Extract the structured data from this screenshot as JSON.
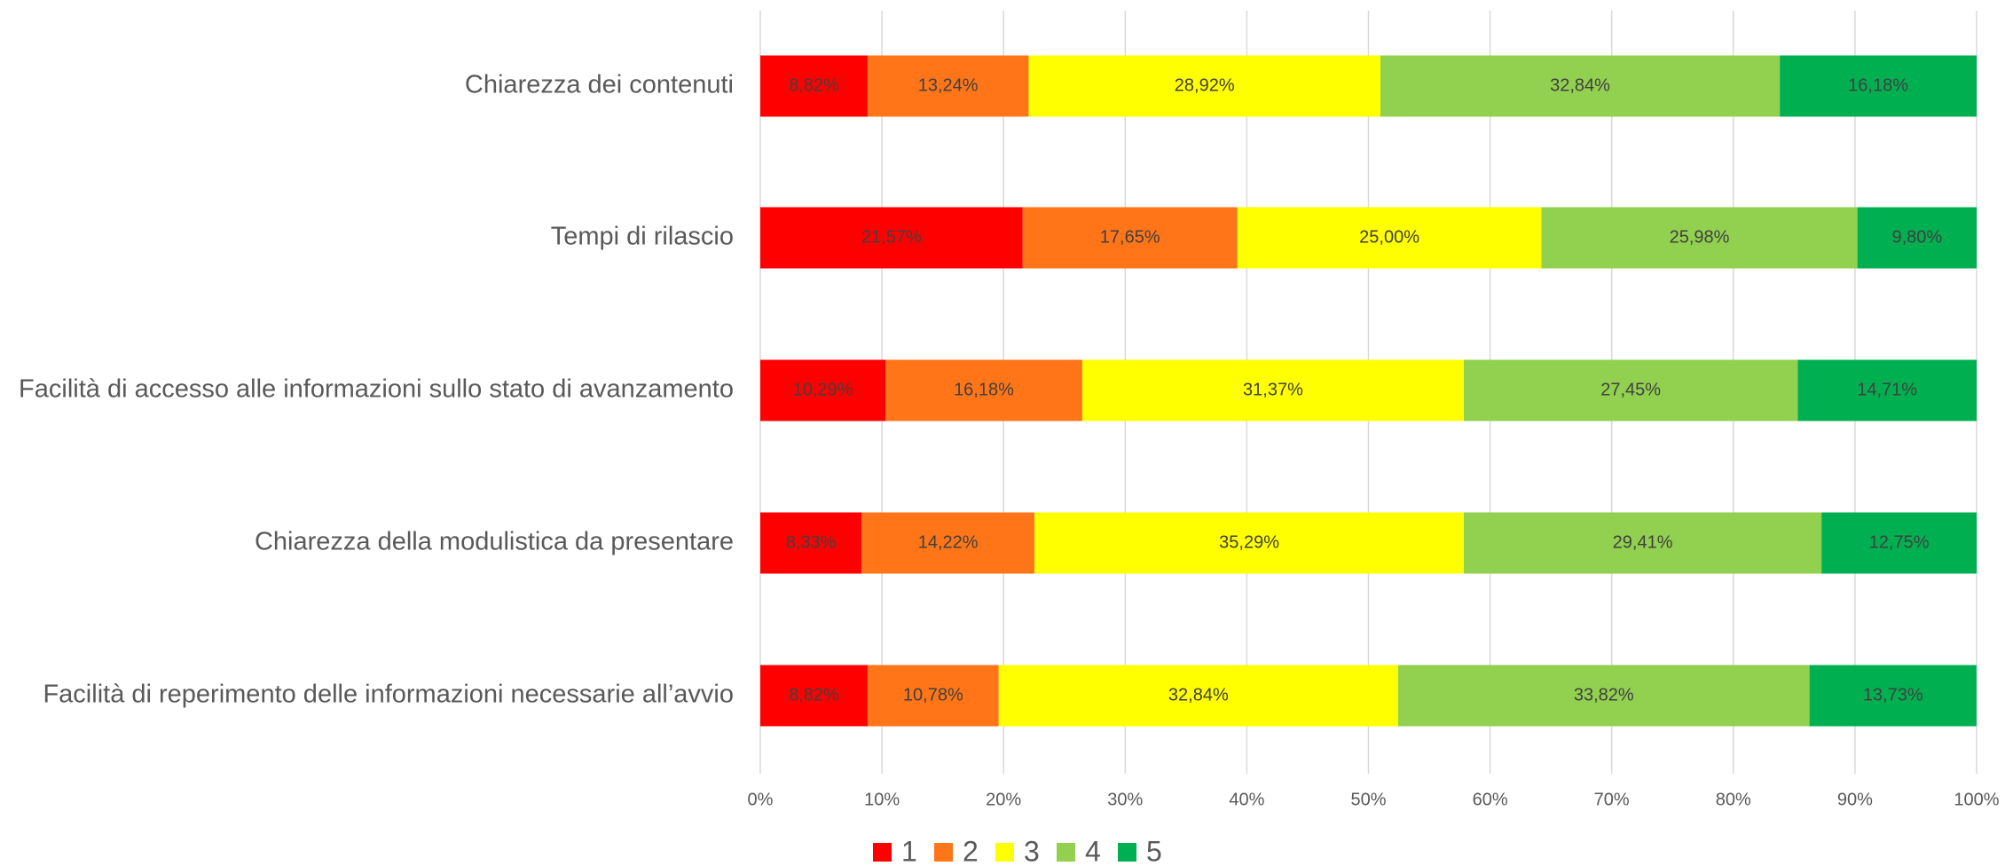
{
  "chart_data": {
    "type": "stacked-bar-horizontal",
    "categories": [
      "Chiarezza dei contenuti",
      "Tempi di rilascio",
      "Facilità di accesso alle informazioni sullo stato di avanzamento",
      "Chiarezza della modulistica da presentare",
      "Facilità di reperimento delle informazioni necessarie all’avvio"
    ],
    "series": [
      {
        "name": "1",
        "color": "#ff0000",
        "values": [
          8.82,
          21.57,
          10.29,
          8.33,
          8.82
        ],
        "value_labels": [
          "8,82%",
          "21,57%",
          "10,29%",
          "8,33%",
          "8,82%"
        ]
      },
      {
        "name": "2",
        "color": "#ff7518",
        "values": [
          13.24,
          17.65,
          16.18,
          14.22,
          10.78
        ],
        "value_labels": [
          "13,24%",
          "17,65%",
          "16,18%",
          "14,22%",
          "10,78%"
        ]
      },
      {
        "name": "3",
        "color": "#ffff00",
        "values": [
          28.92,
          25,
          31.37,
          35.29,
          32.84
        ],
        "value_labels": [
          "28,92%",
          "25,00%",
          "31,37%",
          "35,29%",
          "32,84%"
        ]
      },
      {
        "name": "4",
        "color": "#92d050",
        "values": [
          32.84,
          25.98,
          27.45,
          29.41,
          33.82
        ],
        "value_labels": [
          "32,84%",
          "25,98%",
          "27,45%",
          "29,41%",
          "33,82%"
        ]
      },
      {
        "name": "5",
        "color": "#00b050",
        "values": [
          16.18,
          9.8,
          14.71,
          12.75,
          13.73
        ],
        "value_labels": [
          "16,18%",
          "9,80%",
          "14,71%",
          "12,75%",
          "13,73%"
        ]
      }
    ],
    "xlim": [
      0,
      100
    ],
    "xticks": [
      {
        "value": 0,
        "label": "0%"
      },
      {
        "value": 10,
        "label": "10%"
      },
      {
        "value": 20,
        "label": "20%"
      },
      {
        "value": 30,
        "label": "30%"
      },
      {
        "value": 40,
        "label": "40%"
      },
      {
        "value": 50,
        "label": "50%"
      },
      {
        "value": 60,
        "label": "60%"
      },
      {
        "value": 70,
        "label": "70%"
      },
      {
        "value": 80,
        "label": "80%"
      },
      {
        "value": 90,
        "label": "90%"
      },
      {
        "value": 100,
        "label": "100%"
      }
    ],
    "grid": true,
    "legend": "bottom"
  }
}
